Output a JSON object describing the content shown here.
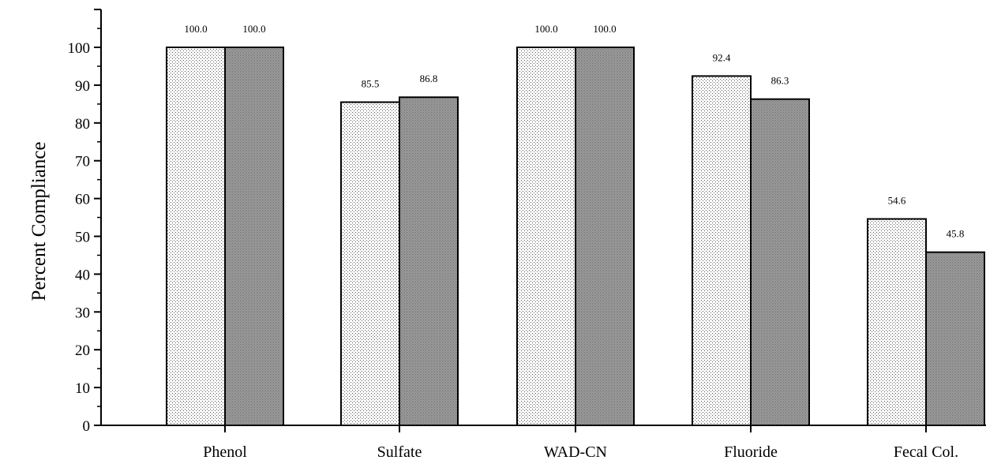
{
  "chart_data": {
    "type": "bar",
    "title": "",
    "xlabel": "",
    "ylabel": "Percent Compliance",
    "ylim": [
      0,
      100
    ],
    "yticks": [
      0,
      10,
      20,
      30,
      40,
      50,
      60,
      70,
      80,
      90,
      100
    ],
    "grid": false,
    "legend": "none",
    "categories": [
      "Phenol",
      "Sulfate",
      "WAD-CN",
      "Fluoride",
      "Fecal Col."
    ],
    "series": [
      {
        "values": [
          100.0,
          85.5,
          100.0,
          92.4,
          54.6
        ],
        "labels": [
          "100.0",
          "85.5",
          "100.0",
          "92.4",
          "54.6"
        ],
        "pattern": "light-dots"
      },
      {
        "values": [
          100.0,
          86.8,
          100.0,
          86.3,
          45.8
        ],
        "labels": [
          "100.0",
          "86.8",
          "100.0",
          "86.3",
          "45.8"
        ],
        "pattern": "dense-dots"
      }
    ]
  }
}
